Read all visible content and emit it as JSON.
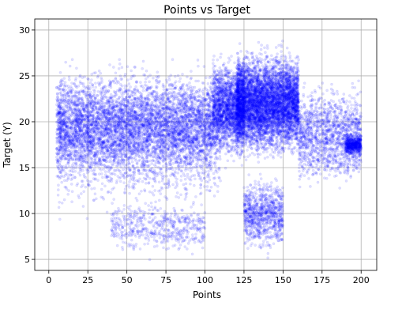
{
  "chart_data": {
    "type": "scatter",
    "title": "Points vs Target",
    "xlabel": "Points",
    "ylabel": "Target (Y)",
    "xlim": [
      -9,
      210
    ],
    "ylim": [
      3.8,
      31.2
    ],
    "xticks": [
      "0",
      "25",
      "50",
      "75",
      "100",
      "125",
      "150",
      "175",
      "200"
    ],
    "yticks": [
      "5",
      "10",
      "15",
      "20",
      "25",
      "30"
    ],
    "grid": true,
    "legend": "none",
    "marker_color": "#0000ff",
    "marker_alpha": 0.12,
    "series": [
      {
        "density_regions": [
          {
            "x_range": [
              5,
              105
            ],
            "y_range": [
              12,
              27
            ],
            "weight": 0.28
          },
          {
            "x_range": [
              5,
              110
            ],
            "y_range": [
              8,
              28
            ],
            "weight": 0.08
          },
          {
            "x_range": [
              105,
              125
            ],
            "y_range": [
              15,
              28
            ],
            "weight": 0.12
          },
          {
            "x_range": [
              120,
              160
            ],
            "y_range": [
              15,
              29
            ],
            "weight": 0.33
          },
          {
            "x_range": [
              125,
              150
            ],
            "y_range": [
              5,
              15
            ],
            "weight": 0.05
          },
          {
            "x_range": [
              160,
              200
            ],
            "y_range": [
              12,
              25
            ],
            "weight": 0.08
          },
          {
            "x_range": [
              190,
              200
            ],
            "y_range": [
              16,
              19
            ],
            "weight": 0.03
          },
          {
            "x_range": [
              40,
              100
            ],
            "y_range": [
              5,
              12
            ],
            "weight": 0.03
          }
        ],
        "approx_point_count": 18000
      }
    ]
  }
}
